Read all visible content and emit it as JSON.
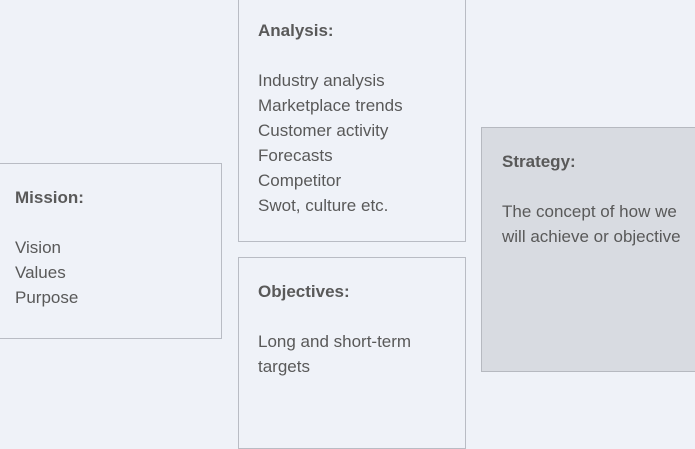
{
  "analysis": {
    "title": "Analysis:",
    "items": [
      "Industry analysis",
      "Marketplace trends",
      "Customer activity",
      "Forecasts",
      "Competitor",
      "Swot, culture etc."
    ]
  },
  "mission": {
    "title": "Mission:",
    "items": [
      "Vision",
      "Values",
      "Purpose"
    ]
  },
  "objectives": {
    "title": "Objectives:",
    "lines": [
      "Long and short-term",
      "targets"
    ]
  },
  "strategy": {
    "title": "Strategy:",
    "lines": [
      "The concept of how we",
      "will achieve or objective"
    ]
  },
  "colors": {
    "background": "#eff2f8",
    "card_border": "#b9bcc4",
    "strategy_fill": "#d8dbe1",
    "text": "#595959"
  }
}
